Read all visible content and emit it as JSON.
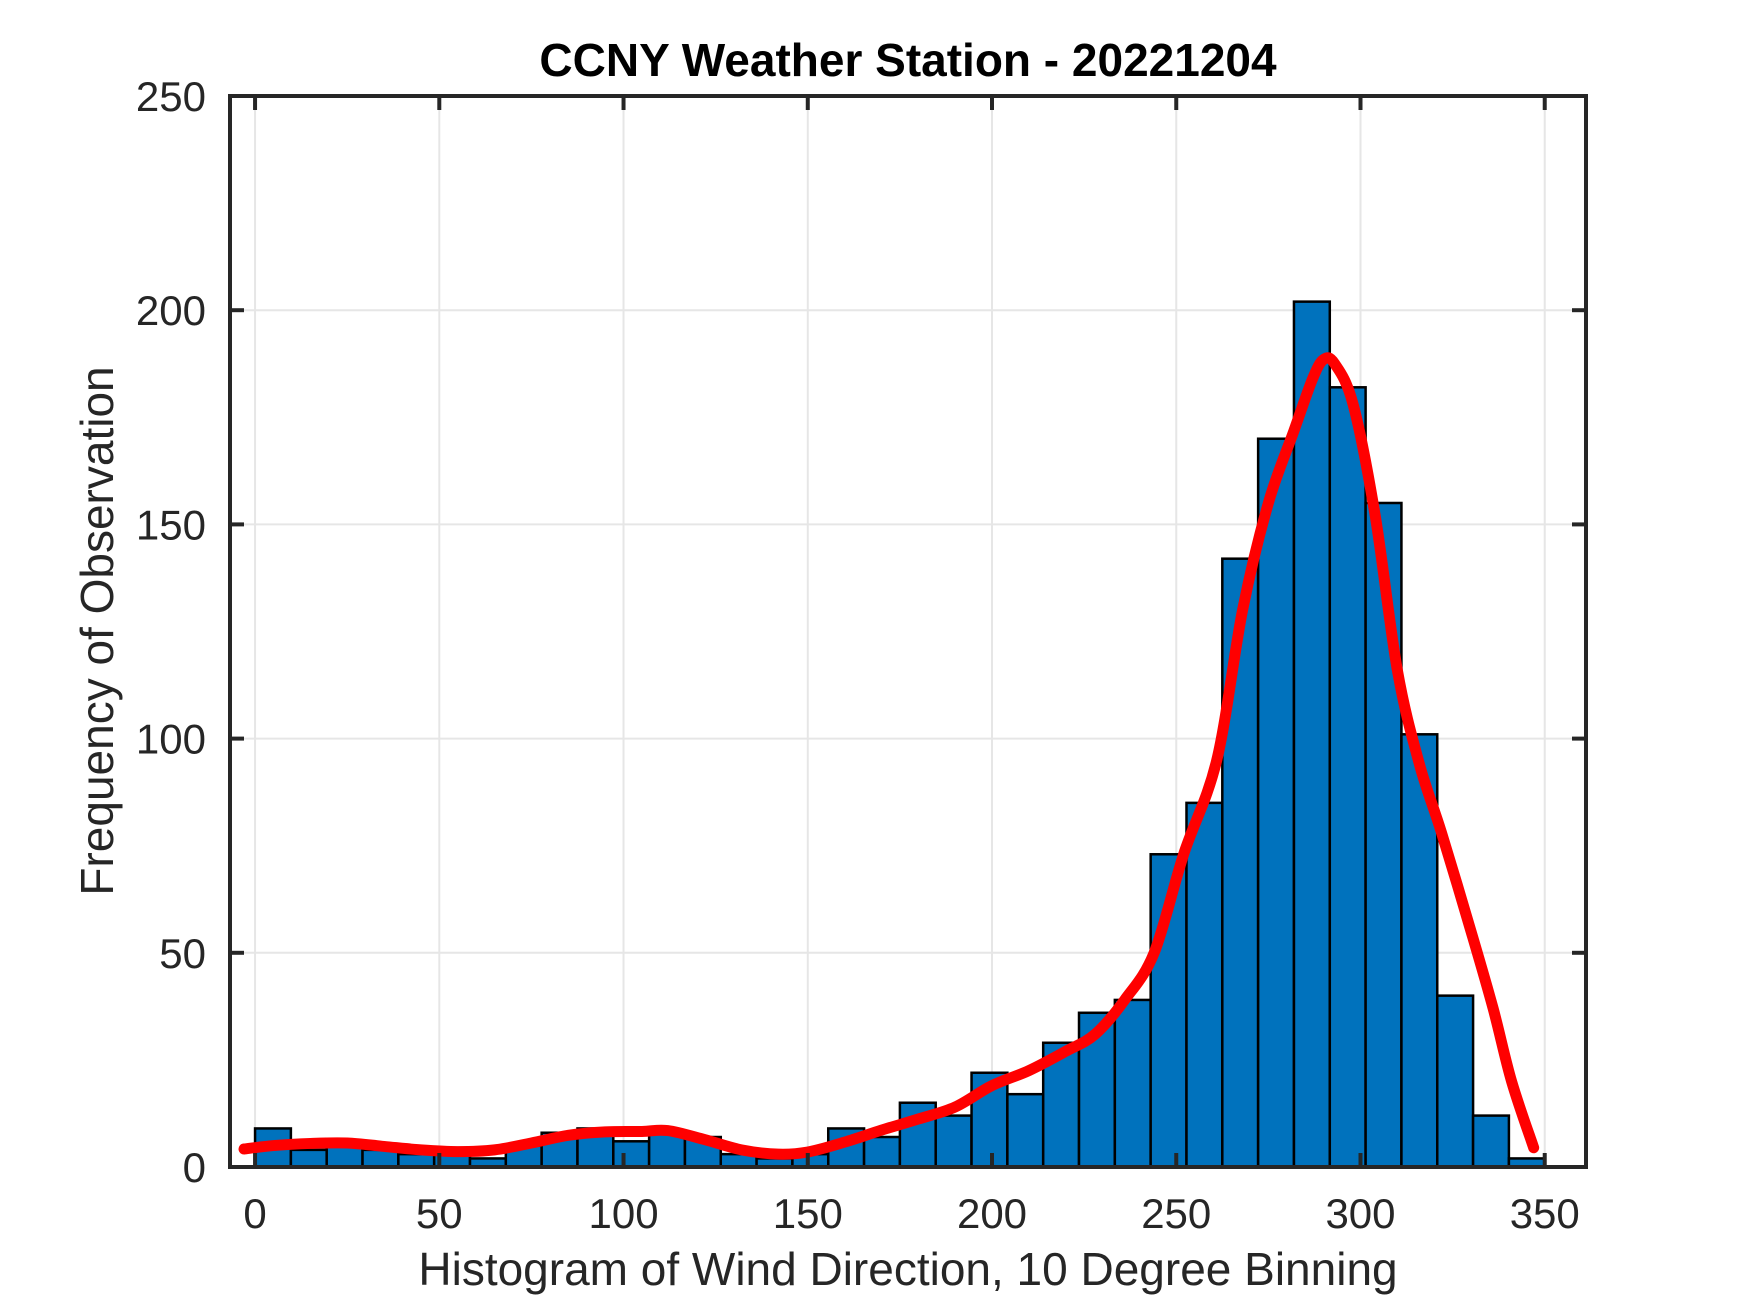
{
  "figure": {
    "title": "CCNY Weather Station - 20221204",
    "xlabel": "Histogram of Wind Direction, 10 Degree Binning",
    "ylabel": "Frequency of Observation"
  },
  "chart_data": {
    "type": "bar",
    "subtype": "histogram-with-fit-curve",
    "title": "CCNY Weather Station - 20221204",
    "xlabel": "Histogram of Wind Direction, 10 Degree Binning",
    "ylabel": "Frequency of Observation",
    "bin_width_degrees": 10,
    "bin_limits": [
      0,
      350
    ],
    "bin_start_degrees": [
      0,
      10,
      20,
      30,
      40,
      50,
      60,
      70,
      80,
      90,
      100,
      110,
      120,
      130,
      140,
      150,
      160,
      170,
      180,
      190,
      200,
      210,
      220,
      230,
      240,
      250,
      260,
      270,
      280,
      290,
      300,
      310,
      320,
      330,
      340,
      350
    ],
    "counts": [
      9,
      4,
      5,
      4,
      3,
      3,
      2,
      5,
      8,
      9,
      6,
      8,
      7,
      3,
      2,
      3,
      9,
      7,
      15,
      12,
      22,
      17,
      29,
      36,
      39,
      73,
      85,
      142,
      170,
      202,
      182,
      155,
      101,
      40,
      12,
      2
    ],
    "series": [
      {
        "name": "wind-direction-histogram",
        "type": "bar",
        "color": "#0072BD",
        "edge_color": "#000000"
      },
      {
        "name": "smooth-fit-curve",
        "type": "line",
        "color": "#FF0000",
        "line_width": 11,
        "points": [
          [
            -3,
            4.2
          ],
          [
            5,
            5.0
          ],
          [
            15,
            5.5
          ],
          [
            25,
            5.6
          ],
          [
            35,
            4.8
          ],
          [
            45,
            4.0
          ],
          [
            55,
            3.6
          ],
          [
            65,
            4.0
          ],
          [
            75,
            5.6
          ],
          [
            85,
            7.4
          ],
          [
            95,
            8.2
          ],
          [
            105,
            8.3
          ],
          [
            112,
            8.5
          ],
          [
            122,
            6.4
          ],
          [
            132,
            4.0
          ],
          [
            142,
            3.0
          ],
          [
            150,
            3.5
          ],
          [
            160,
            5.8
          ],
          [
            170,
            8.6
          ],
          [
            180,
            11.2
          ],
          [
            190,
            14.0
          ],
          [
            200,
            19.0
          ],
          [
            210,
            22.5
          ],
          [
            220,
            27.0
          ],
          [
            228,
            31.0
          ],
          [
            236,
            39.0
          ],
          [
            244,
            50.0
          ],
          [
            252,
            73.0
          ],
          [
            261,
            95.0
          ],
          [
            268,
            130.0
          ],
          [
            275,
            155.0
          ],
          [
            282,
            172.0
          ],
          [
            287,
            184.0
          ],
          [
            290,
            188.5
          ],
          [
            293,
            187.5
          ],
          [
            298,
            178.0
          ],
          [
            304,
            152.0
          ],
          [
            310,
            116.0
          ],
          [
            316,
            94.0
          ],
          [
            322,
            78.0
          ],
          [
            330,
            55.0
          ],
          [
            336,
            37.0
          ],
          [
            341,
            20.0
          ],
          [
            347,
            4.5
          ]
        ]
      }
    ],
    "x_ticks": [
      0,
      50,
      100,
      150,
      200,
      250,
      300,
      350
    ],
    "y_ticks": [
      0,
      50,
      100,
      150,
      200,
      250
    ],
    "xlim": [
      -6.8,
      361.2
    ],
    "ylim": [
      0,
      250
    ],
    "grid": true,
    "legend": "none",
    "grid_color": "#E6E6E6",
    "axis_color": "#262626",
    "tick_label_color": "#262626",
    "background": "#FFFFFF"
  }
}
